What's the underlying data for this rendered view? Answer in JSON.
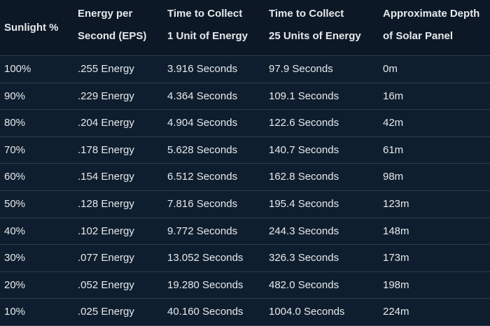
{
  "table": {
    "header": [
      [
        "Sunlight %"
      ],
      [
        "Energy per",
        "Second (EPS)"
      ],
      [
        "Time to Collect",
        "1 Unit of Energy"
      ],
      [
        "Time to Collect",
        "25 Units of Energy"
      ],
      [
        "Approximate Depth",
        "of Solar Panel"
      ]
    ],
    "rows": [
      [
        "100%",
        ".255 Energy",
        "3.916 Seconds",
        "97.9 Seconds",
        "0m"
      ],
      [
        "90%",
        ".229 Energy",
        "4.364 Seconds",
        "109.1 Seconds",
        "16m"
      ],
      [
        "80%",
        ".204 Energy",
        "4.904 Seconds",
        "122.6 Seconds",
        "42m"
      ],
      [
        "70%",
        ".178 Energy",
        "5.628 Seconds",
        "140.7 Seconds",
        "61m"
      ],
      [
        "60%",
        ".154 Energy",
        "6.512 Seconds",
        "162.8 Seconds",
        "98m"
      ],
      [
        "50%",
        ".128 Energy",
        "7.816 Seconds",
        "195.4 Seconds",
        "123m"
      ],
      [
        "40%",
        ".102 Energy",
        "9.772 Seconds",
        "244.3 Seconds",
        "148m"
      ],
      [
        "30%",
        ".077 Energy",
        "13.052 Seconds",
        "326.3 Seconds",
        "173m"
      ],
      [
        "20%",
        ".052 Energy",
        "19.280 Seconds",
        "482.0 Seconds",
        "198m"
      ],
      [
        "10%",
        ".025 Energy",
        "40.160 Seconds",
        "1004.0 Seconds",
        "224m"
      ]
    ]
  }
}
